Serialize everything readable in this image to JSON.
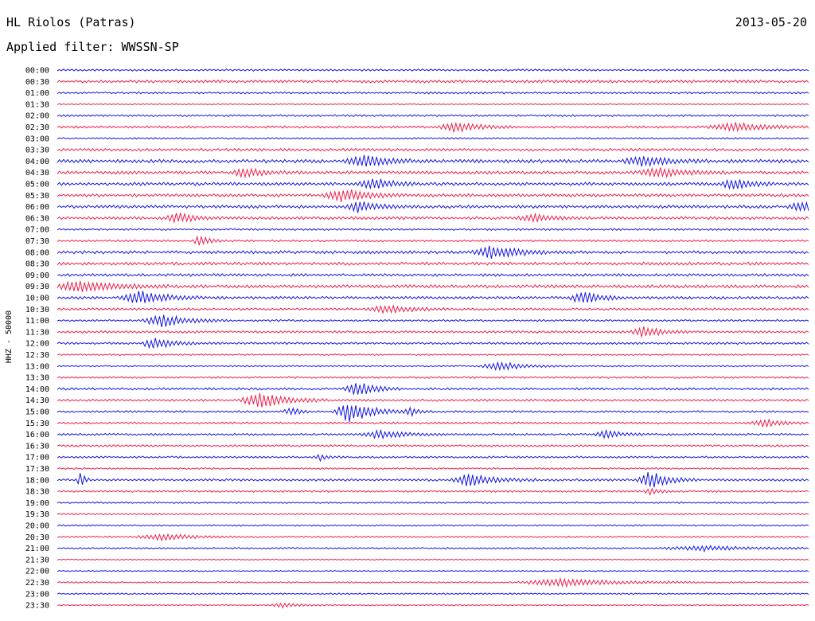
{
  "header": {
    "station": "HL Riolos (Patras)",
    "date": "2013-05-20",
    "filter": "Applied filter: WWSSN-SP"
  },
  "chart_data": {
    "type": "line",
    "title": "HL Riolos (Patras)",
    "ylabel": "HHZ - 50000",
    "xlabel": "",
    "grid": false,
    "colors": [
      "#1414e6",
      "#f01e4b"
    ],
    "series_labels": [
      "00:00",
      "00:30",
      "01:00",
      "01:30",
      "02:00",
      "02:30",
      "03:00",
      "03:30",
      "04:00",
      "04:30",
      "05:00",
      "05:30",
      "06:00",
      "06:30",
      "07:00",
      "07:30",
      "08:00",
      "08:30",
      "09:00",
      "09:30",
      "10:00",
      "10:30",
      "11:00",
      "11:30",
      "12:00",
      "12:30",
      "13:00",
      "13:30",
      "14:00",
      "14:30",
      "15:00",
      "15:30",
      "16:00",
      "16:30",
      "17:00",
      "17:30",
      "18:00",
      "18:30",
      "19:00",
      "19:30",
      "20:00",
      "20:30",
      "21:00",
      "21:30",
      "22:00",
      "22:30",
      "23:00",
      "23:30"
    ],
    "noise_level": [
      1.0,
      1.5,
      1.0,
      0.6,
      1.0,
      1.2,
      0.8,
      1.4,
      1.8,
      1.6,
      1.6,
      1.6,
      1.6,
      1.5,
      1.0,
      1.0,
      1.6,
      1.6,
      1.4,
      1.6,
      1.4,
      1.2,
      1.0,
      1.2,
      1.2,
      0.8,
      0.8,
      1.0,
      1.2,
      1.2,
      1.0,
      1.0,
      1.0,
      1.0,
      1.0,
      0.8,
      1.2,
      1.0,
      0.8,
      0.8,
      0.8,
      0.8,
      0.8,
      0.6,
      0.6,
      0.8,
      0.8,
      0.6
    ],
    "events": [
      {
        "row": 5,
        "t": 0.53,
        "amp": 7,
        "dur": 0.025
      },
      {
        "row": 5,
        "t": 0.9,
        "amp": 5,
        "dur": 0.04
      },
      {
        "row": 8,
        "t": 0.41,
        "amp": 7,
        "dur": 0.03
      },
      {
        "row": 8,
        "t": 0.78,
        "amp": 6,
        "dur": 0.03
      },
      {
        "row": 9,
        "t": 0.25,
        "amp": 6,
        "dur": 0.02
      },
      {
        "row": 9,
        "t": 0.8,
        "amp": 6,
        "dur": 0.03
      },
      {
        "row": 10,
        "t": 0.42,
        "amp": 8,
        "dur": 0.02
      },
      {
        "row": 10,
        "t": 0.9,
        "amp": 7,
        "dur": 0.02
      },
      {
        "row": 11,
        "t": 0.38,
        "amp": 8,
        "dur": 0.03
      },
      {
        "row": 12,
        "t": 0.4,
        "amp": 7,
        "dur": 0.02
      },
      {
        "row": 12,
        "t": 0.99,
        "amp": 6,
        "dur": 0.02
      },
      {
        "row": 13,
        "t": 0.16,
        "amp": 6,
        "dur": 0.02
      },
      {
        "row": 13,
        "t": 0.63,
        "amp": 5,
        "dur": 0.02
      },
      {
        "row": 15,
        "t": 0.19,
        "amp": 8,
        "dur": 0.01
      },
      {
        "row": 16,
        "t": 0.58,
        "amp": 8,
        "dur": 0.03
      },
      {
        "row": 19,
        "t": 0.03,
        "amp": 7,
        "dur": 0.04
      },
      {
        "row": 20,
        "t": 0.11,
        "amp": 9,
        "dur": 0.03
      },
      {
        "row": 20,
        "t": 0.7,
        "amp": 8,
        "dur": 0.02
      },
      {
        "row": 21,
        "t": 0.44,
        "amp": 5,
        "dur": 0.03
      },
      {
        "row": 22,
        "t": 0.14,
        "amp": 8,
        "dur": 0.03
      },
      {
        "row": 23,
        "t": 0.78,
        "amp": 7,
        "dur": 0.02
      },
      {
        "row": 24,
        "t": 0.13,
        "amp": 7,
        "dur": 0.02
      },
      {
        "row": 26,
        "t": 0.59,
        "amp": 5,
        "dur": 0.03
      },
      {
        "row": 28,
        "t": 0.4,
        "amp": 9,
        "dur": 0.02
      },
      {
        "row": 29,
        "t": 0.27,
        "amp": 10,
        "dur": 0.03
      },
      {
        "row": 30,
        "t": 0.39,
        "amp": 14,
        "dur": 0.025
      },
      {
        "row": 30,
        "t": 0.31,
        "amp": 6,
        "dur": 0.01
      },
      {
        "row": 30,
        "t": 0.47,
        "amp": 6,
        "dur": 0.01
      },
      {
        "row": 31,
        "t": 0.94,
        "amp": 5,
        "dur": 0.02
      },
      {
        "row": 32,
        "t": 0.43,
        "amp": 5,
        "dur": 0.03
      },
      {
        "row": 32,
        "t": 0.73,
        "amp": 5,
        "dur": 0.02
      },
      {
        "row": 34,
        "t": 0.35,
        "amp": 4,
        "dur": 0.01
      },
      {
        "row": 36,
        "t": 0.03,
        "amp": 11,
        "dur": 0.005
      },
      {
        "row": 36,
        "t": 0.55,
        "amp": 8,
        "dur": 0.03
      },
      {
        "row": 36,
        "t": 0.79,
        "amp": 11,
        "dur": 0.02
      },
      {
        "row": 37,
        "t": 0.79,
        "amp": 4,
        "dur": 0.01
      },
      {
        "row": 41,
        "t": 0.14,
        "amp": 4,
        "dur": 0.04
      },
      {
        "row": 42,
        "t": 0.86,
        "amp": 3,
        "dur": 0.06
      },
      {
        "row": 45,
        "t": 0.67,
        "amp": 5,
        "dur": 0.06
      },
      {
        "row": 47,
        "t": 0.3,
        "amp": 3,
        "dur": 0.02
      }
    ]
  }
}
